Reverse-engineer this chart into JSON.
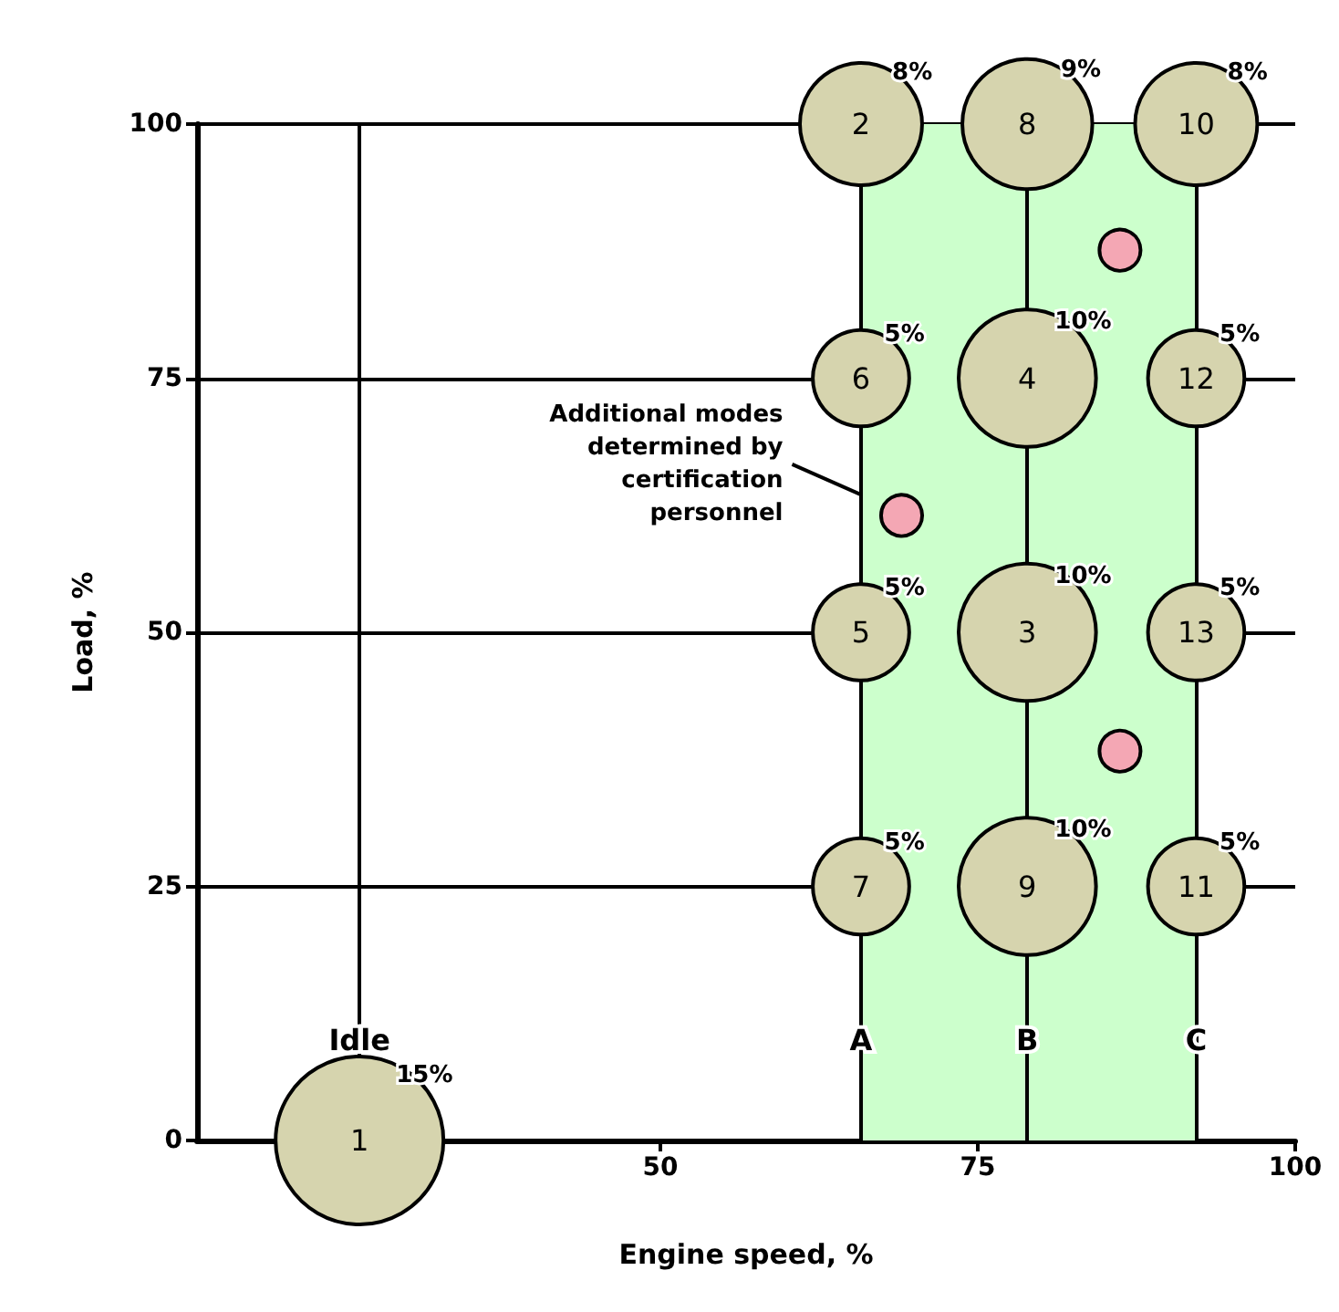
{
  "chart_data": {
    "type": "bubble",
    "xlabel": "Engine speed, %",
    "ylabel": "Load, %",
    "xlim": [
      13.5,
      100
    ],
    "xticks": [
      50,
      75,
      100
    ],
    "ylim": [
      0,
      100
    ],
    "yticks": [
      0,
      25,
      50,
      75,
      100
    ],
    "grid": "y",
    "series": [
      {
        "color": "#d6d4ae",
        "x": [
          26.3,
          65.8,
          78.9,
          92.2,
          65.8,
          78.9,
          92.2,
          65.8,
          78.9,
          92.2,
          65.8,
          78.9,
          92.2
        ],
        "values": [
          0,
          100,
          100,
          100,
          75,
          75,
          75,
          50,
          50,
          50,
          25,
          25,
          25
        ],
        "sizes": [
          1,
          0.53,
          0.6,
          0.53,
          0.33,
          0.67,
          0.33,
          0.33,
          0.67,
          0.33,
          0.33,
          0.67,
          0.33
        ]
      },
      {
        "color": "#f4a7b4",
        "x": [
          69,
          86.2,
          86.2
        ],
        "values": [
          61.5,
          87.6,
          38.3
        ],
        "sizes": [
          0.06,
          0.06,
          0.06
        ]
      }
    ],
    "bands": [
      {
        "axis": "x",
        "from": 65.8,
        "to": 92.2,
        "color": "#ccffcc"
      }
    ],
    "ref_lines": [
      {
        "axis": "x",
        "value": 26.3,
        "label": "Idle"
      },
      {
        "axis": "x",
        "value": 65.8,
        "label": "A"
      },
      {
        "axis": "x",
        "value": 78.9,
        "label": "B"
      },
      {
        "axis": "x",
        "value": 92.2,
        "label": "C"
      }
    ],
    "annotations": [
      {
        "text": "1",
        "x": 26.3,
        "y": 0
      },
      {
        "text": "2",
        "x": 65.8,
        "y": 100
      },
      {
        "text": "8",
        "x": 78.9,
        "y": 100
      },
      {
        "text": "10",
        "x": 92.2,
        "y": 100
      },
      {
        "text": "6",
        "x": 65.8,
        "y": 75
      },
      {
        "text": "4",
        "x": 78.9,
        "y": 75
      },
      {
        "text": "12",
        "x": 92.2,
        "y": 75
      },
      {
        "text": "5",
        "x": 65.8,
        "y": 50
      },
      {
        "text": "3",
        "x": 78.9,
        "y": 50
      },
      {
        "text": "13",
        "x": 92.2,
        "y": 50
      },
      {
        "text": "7",
        "x": 65.8,
        "y": 25
      },
      {
        "text": "9",
        "x": 78.9,
        "y": 25
      },
      {
        "text": "11",
        "x": 92.2,
        "y": 25
      },
      {
        "text": "15%",
        "x": 26.3,
        "y": 0
      },
      {
        "text": "8%",
        "x": 65.8,
        "y": 100
      },
      {
        "text": "9%",
        "x": 78.9,
        "y": 100
      },
      {
        "text": "8%",
        "x": 92.2,
        "y": 100
      },
      {
        "text": "5%",
        "x": 65.8,
        "y": 75
      },
      {
        "text": "10%",
        "x": 78.9,
        "y": 75
      },
      {
        "text": "5%",
        "x": 92.2,
        "y": 75
      },
      {
        "text": "5%",
        "x": 65.8,
        "y": 50
      },
      {
        "text": "10%",
        "x": 78.9,
        "y": 50
      },
      {
        "text": "5%",
        "x": 92.2,
        "y": 50
      },
      {
        "text": "5%",
        "x": 65.8,
        "y": 25
      },
      {
        "text": "10%",
        "x": 78.9,
        "y": 25
      },
      {
        "text": "5%",
        "x": 92.2,
        "y": 25
      },
      {
        "text": "Additional modes\ndetermined by\ncertification\npersonnel",
        "x": 69,
        "y": 61.5
      }
    ]
  }
}
